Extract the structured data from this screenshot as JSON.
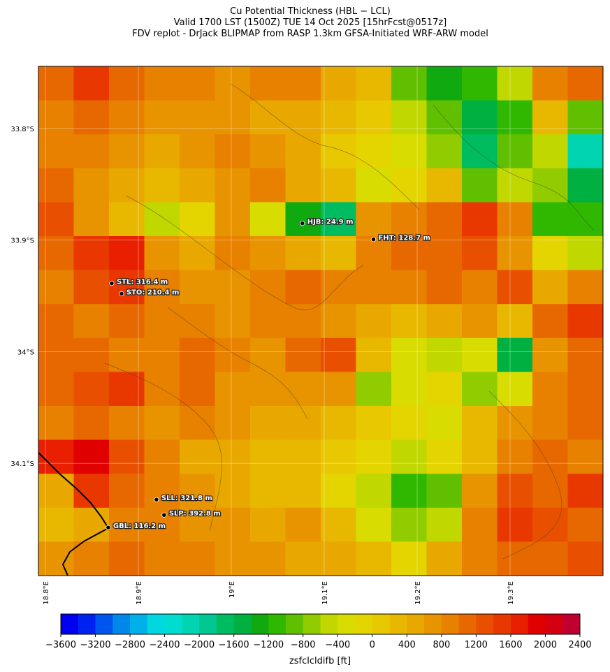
{
  "chart_data": {
    "type": "heatmap",
    "title": "Cu Potential Thickness (HBL − LCL)",
    "subtitle": [
      "Valid 1700 LST (1500Z) TUE 14 Oct 2025 [15hrFcst@0517z]",
      "FDV replot - DrJack BLIPMAP from RASP 1.3km GFSA-Initiated WRF-ARW model"
    ],
    "xlim": [
      18.7925,
      19.4
    ],
    "ylim": [
      -34.2006,
      -33.7444
    ],
    "xticks": [
      {
        "value": 18.8,
        "label": "18.8°E"
      },
      {
        "value": 18.9,
        "label": "18.9°E"
      },
      {
        "value": 19.0,
        "label": "19°E"
      },
      {
        "value": 19.1,
        "label": "19.1°E"
      },
      {
        "value": 19.2,
        "label": "19.2°E"
      },
      {
        "value": 19.3,
        "label": "19.3°E"
      }
    ],
    "yticks": [
      {
        "value": -33.8,
        "label": "33.8°S"
      },
      {
        "value": -33.9,
        "label": "33.9°S"
      },
      {
        "value": -34.0,
        "label": "34°S"
      },
      {
        "value": -34.1,
        "label": "34.1°S"
      }
    ],
    "grid": true,
    "values": [
      [
        1000,
        1400,
        1000,
        900,
        800,
        700,
        800,
        900,
        500,
        300,
        -1000,
        -1400,
        -1200,
        -600,
        800,
        1000
      ],
      [
        900,
        1000,
        900,
        700,
        600,
        600,
        400,
        500,
        200,
        100,
        -600,
        -1000,
        -1600,
        -1200,
        200,
        -1000
      ],
      [
        800,
        900,
        600,
        500,
        700,
        800,
        600,
        400,
        100,
        -200,
        -400,
        -800,
        -1800,
        -1000,
        -600,
        -2200
      ],
      [
        1000,
        700,
        400,
        200,
        500,
        700,
        800,
        500,
        200,
        -400,
        -200,
        200,
        -1000,
        -600,
        -800,
        -1600
      ],
      [
        1200,
        600,
        300,
        -600,
        -200,
        600,
        -400,
        -1400,
        -1800,
        600,
        900,
        1000,
        1400,
        800,
        -1200,
        -1200
      ],
      [
        1000,
        1400,
        1600,
        700,
        500,
        800,
        700,
        400,
        200,
        800,
        1000,
        1000,
        1200,
        600,
        -200,
        -600
      ],
      [
        900,
        1200,
        1400,
        800,
        600,
        700,
        900,
        1000,
        800,
        900,
        800,
        1000,
        800,
        1200,
        400,
        800
      ],
      [
        1000,
        900,
        1000,
        800,
        900,
        700,
        800,
        900,
        700,
        500,
        300,
        400,
        600,
        200,
        1000,
        1400
      ],
      [
        1100,
        1000,
        800,
        900,
        1000,
        800,
        700,
        1000,
        1200,
        300,
        -400,
        -600,
        -400,
        -1600,
        600,
        1000
      ],
      [
        1000,
        1200,
        1400,
        900,
        1000,
        700,
        600,
        700,
        600,
        -800,
        -400,
        -200,
        -800,
        -400,
        800,
        1000
      ],
      [
        900,
        1000,
        800,
        700,
        800,
        600,
        500,
        400,
        300,
        0,
        -200,
        -400,
        200,
        600,
        900,
        1000
      ],
      [
        1600,
        1800,
        1200,
        800,
        500,
        400,
        300,
        200,
        100,
        -200,
        -600,
        -200,
        300,
        800,
        1000,
        900
      ],
      [
        400,
        1400,
        1000,
        900,
        700,
        500,
        300,
        200,
        -200,
        -600,
        -1200,
        -1000,
        600,
        1200,
        1000,
        1400
      ],
      [
        200,
        400,
        900,
        800,
        600,
        700,
        500,
        600,
        300,
        -400,
        -800,
        -600,
        800,
        1400,
        1200,
        1000
      ],
      [
        700,
        900,
        1000,
        900,
        800,
        700,
        600,
        500,
        400,
        200,
        -200,
        400,
        900,
        1000,
        1100,
        1200
      ]
    ],
    "stations": [
      {
        "label": "HJB: 24.9 m",
        "lon": 19.0765,
        "lat": -33.885
      },
      {
        "label": "FHT: 128.7 m",
        "lon": 19.153,
        "lat": -33.8994
      },
      {
        "label": "STL: 316.4 m",
        "lon": 18.8714,
        "lat": -33.9388
      },
      {
        "label": "STO: 210.4 m",
        "lon": 18.8819,
        "lat": -33.9481
      },
      {
        "label": "SLL: 321.8 m",
        "lon": 18.9195,
        "lat": -34.1325
      },
      {
        "label": "SLP: 392.8 m",
        "lon": 18.9277,
        "lat": -34.1463
      },
      {
        "label": "GBL: 116.2 m",
        "lon": 18.8676,
        "lat": -34.1575
      }
    ],
    "colorbar": {
      "label": "zsfclcldifb [ft]",
      "lim": [
        -3600,
        2400
      ],
      "step": 200,
      "colors": [
        "#0000ee",
        "#0022f0",
        "#0055ee",
        "#0088e8",
        "#00b0e8",
        "#00d8e0",
        "#00dcd0",
        "#00d4b0",
        "#00c890",
        "#00bc60",
        "#00b040",
        "#10aa10",
        "#30b800",
        "#60c000",
        "#90cc00",
        "#c0d800",
        "#d8dc00",
        "#e4d400",
        "#e8c800",
        "#e8b800",
        "#e8a800",
        "#e89400",
        "#e88000",
        "#e86800",
        "#e85000",
        "#e83800",
        "#e82000",
        "#e00000",
        "#d40010",
        "#c00030"
      ],
      "ticks": [
        {
          "value": -3600,
          "label": "−3600"
        },
        {
          "value": -3200,
          "label": "−3200"
        },
        {
          "value": -2800,
          "label": "−2800"
        },
        {
          "value": -2400,
          "label": "−2400"
        },
        {
          "value": -2000,
          "label": "−2000"
        },
        {
          "value": -1600,
          "label": "−1600"
        },
        {
          "value": -1200,
          "label": "−1200"
        },
        {
          "value": -800,
          "label": "−800"
        },
        {
          "value": -400,
          "label": "−400"
        },
        0,
        400,
        800,
        1200,
        1600,
        2000,
        2400
      ]
    }
  }
}
